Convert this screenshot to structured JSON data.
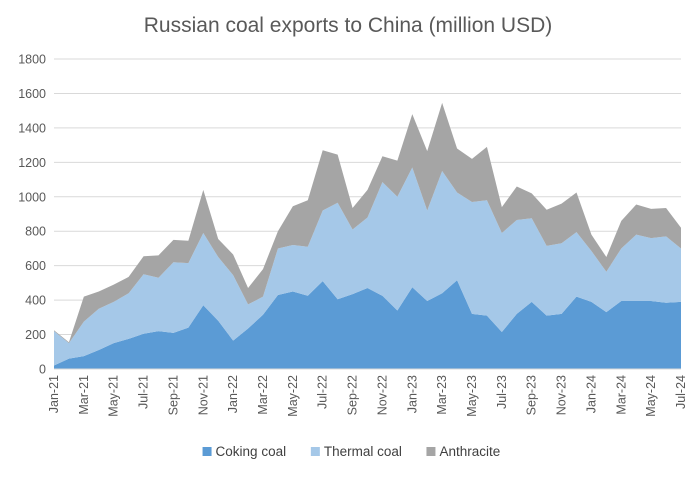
{
  "chart_data": {
    "type": "area",
    "stacked": true,
    "title": "Russian coal exports to China (million USD)",
    "xlabel": "",
    "ylabel": "",
    "ylim": [
      0,
      1800
    ],
    "yticks": [
      0,
      200,
      400,
      600,
      800,
      1000,
      1200,
      1400,
      1600,
      1800
    ],
    "gridlines": true,
    "legend_position": "bottom",
    "x": [
      "Jan-21",
      "Feb-21",
      "Mar-21",
      "Apr-21",
      "May-21",
      "Jun-21",
      "Jul-21",
      "Aug-21",
      "Sep-21",
      "Oct-21",
      "Nov-21",
      "Dec-21",
      "Jan-22",
      "Feb-22",
      "Mar-22",
      "Apr-22",
      "May-22",
      "Jun-22",
      "Jul-22",
      "Aug-22",
      "Sep-22",
      "Oct-22",
      "Nov-22",
      "Dec-22",
      "Jan-23",
      "Feb-23",
      "Mar-23",
      "Apr-23",
      "May-23",
      "Jun-23",
      "Jul-23",
      "Aug-23",
      "Sep-23",
      "Oct-23",
      "Nov-23",
      "Dec-23",
      "Jan-24",
      "Feb-24",
      "Mar-24",
      "Apr-24",
      "May-24",
      "Jun-24",
      "Jul-24"
    ],
    "x_tick_labels": [
      "Jan-21",
      "Mar-21",
      "May-21",
      "Jul-21",
      "Sep-21",
      "Nov-21",
      "Jan-22",
      "Mar-22",
      "May-22",
      "Jul-22",
      "Sep-22",
      "Nov-22",
      "Jan-23",
      "Mar-23",
      "May-23",
      "Jul-23",
      "Sep-23",
      "Nov-23",
      "Jan-24",
      "Mar-24",
      "May-24",
      "Jul-24"
    ],
    "series": [
      {
        "name": "Coking coal",
        "color": "#5B9BD5",
        "values": [
          20,
          60,
          75,
          110,
          150,
          175,
          205,
          220,
          210,
          240,
          370,
          280,
          165,
          235,
          315,
          430,
          450,
          425,
          510,
          405,
          435,
          470,
          425,
          340,
          475,
          395,
          440,
          515,
          320,
          310,
          215,
          320,
          390,
          310,
          320,
          420,
          390,
          330,
          395,
          395,
          395,
          385,
          390
        ]
      },
      {
        "name": "Thermal coal",
        "color": "#A5C8E8",
        "values": [
          200,
          90,
          200,
          240,
          240,
          265,
          345,
          310,
          410,
          375,
          420,
          370,
          380,
          140,
          105,
          270,
          270,
          285,
          410,
          560,
          375,
          410,
          660,
          660,
          695,
          525,
          710,
          510,
          650,
          670,
          575,
          545,
          485,
          405,
          410,
          375,
          295,
          235,
          305,
          385,
          365,
          385,
          310
        ]
      },
      {
        "name": "Anthracite",
        "color": "#A5A5A5",
        "values": [
          5,
          5,
          145,
          100,
          100,
          95,
          105,
          130,
          130,
          130,
          250,
          105,
          120,
          95,
          160,
          100,
          225,
          270,
          350,
          280,
          125,
          160,
          150,
          210,
          310,
          345,
          395,
          255,
          250,
          310,
          150,
          195,
          145,
          210,
          230,
          230,
          95,
          85,
          160,
          175,
          170,
          165,
          120
        ]
      }
    ]
  }
}
